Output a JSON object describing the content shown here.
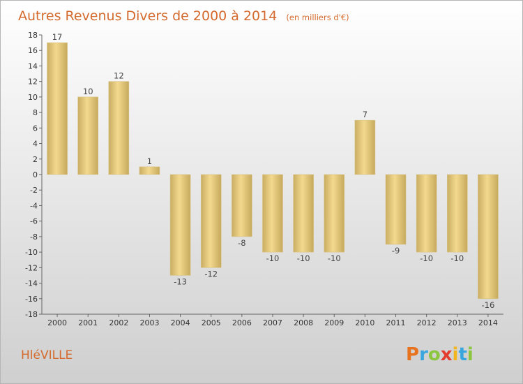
{
  "chart_data": {
    "type": "bar",
    "title": "Autres Revenus Divers de 2000 à 2014",
    "subtitle": "(en milliers d'€)",
    "categories": [
      "2000",
      "2001",
      "2002",
      "2003",
      "2004",
      "2005",
      "2006",
      "2007",
      "2008",
      "2009",
      "2010",
      "2011",
      "2012",
      "2013",
      "2014"
    ],
    "values": [
      17,
      10,
      12,
      1,
      -13,
      -12,
      -8,
      -10,
      -10,
      -10,
      7,
      -9,
      -10,
      -10,
      -16
    ],
    "data_labels": [
      "17",
      "10",
      "12",
      "1",
      "-13",
      "-12",
      "-8",
      "-10",
      "-10",
      "-10",
      "7",
      "-9",
      "-10",
      "-10",
      "-16"
    ],
    "ylim": [
      -18,
      18
    ],
    "yticks": [
      18,
      16,
      14,
      12,
      10,
      8,
      6,
      4,
      2,
      0,
      -2,
      -4,
      -6,
      -8,
      -10,
      -12,
      -14,
      -16,
      -18
    ],
    "xlabel": "",
    "ylabel": "",
    "grid": false,
    "bar_color": "#e8c978"
  },
  "footer": {
    "town": "HléVILLE",
    "brand_letters": [
      "P",
      "r",
      "o",
      "x",
      "i",
      "t",
      "i"
    ],
    "brand_colors": [
      "#e8731e",
      "#3aa6dd",
      "#8cc63f",
      "#e33b2e",
      "#f2b51c",
      "#3aa6dd",
      "#8cc63f"
    ]
  }
}
